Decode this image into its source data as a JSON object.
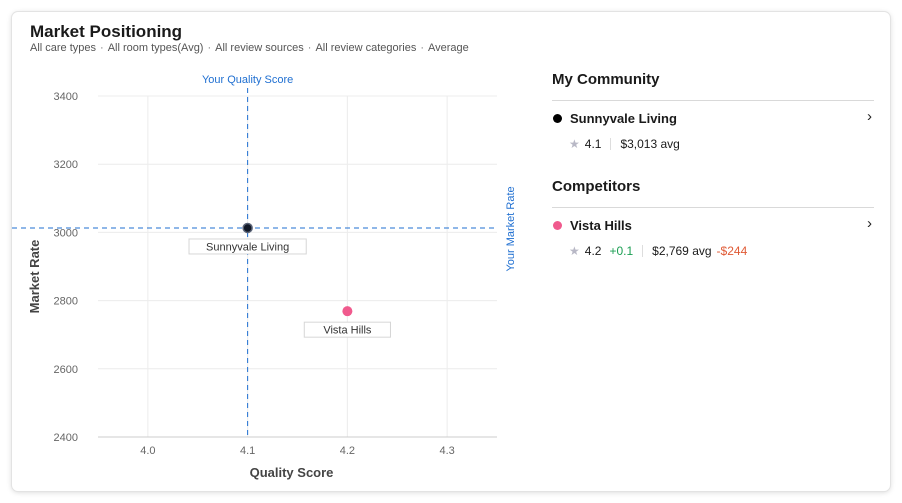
{
  "header": {
    "title": "Market Positioning",
    "filters": [
      "All care types",
      "All room types(Avg)",
      "All review sources",
      "All review categories",
      "Average"
    ]
  },
  "chart_data": {
    "type": "scatter",
    "xlabel": "Quality Score",
    "ylabel": "Market Rate",
    "xlim": [
      3.95,
      4.35
    ],
    "ylim": [
      2400,
      3400
    ],
    "xticks": [
      "4.0",
      "4.1",
      "4.2",
      "4.3"
    ],
    "yticks": [
      "2400",
      "2600",
      "2800",
      "3000",
      "3200",
      "3400"
    ],
    "grid": true,
    "points": [
      {
        "name": "Sunnyvale Living",
        "x": 4.1,
        "y": 3013,
        "color": "#111827"
      },
      {
        "name": "Vista Hills",
        "x": 4.2,
        "y": 2769,
        "color": "#f05a8d"
      }
    ],
    "reference_lines": {
      "vertical": {
        "label": "Your Quality Score",
        "x": 4.1
      },
      "horizontal": {
        "label": "Your Market Rate",
        "y": 3013
      }
    },
    "reference_color": "#1f6fd1"
  },
  "sidebar": {
    "my_community_title": "My Community",
    "my_community": {
      "name": "Sunnyvale Living",
      "dot_color": "#000000",
      "rating": "4.1",
      "price": "$3,013 avg"
    },
    "competitors_title": "Competitors",
    "competitors": [
      {
        "name": "Vista Hills",
        "dot_color": "#f05a8d",
        "rating": "4.2",
        "rating_diff": "+0.1",
        "price": "$2,769 avg",
        "price_diff": "-$244"
      }
    ]
  }
}
